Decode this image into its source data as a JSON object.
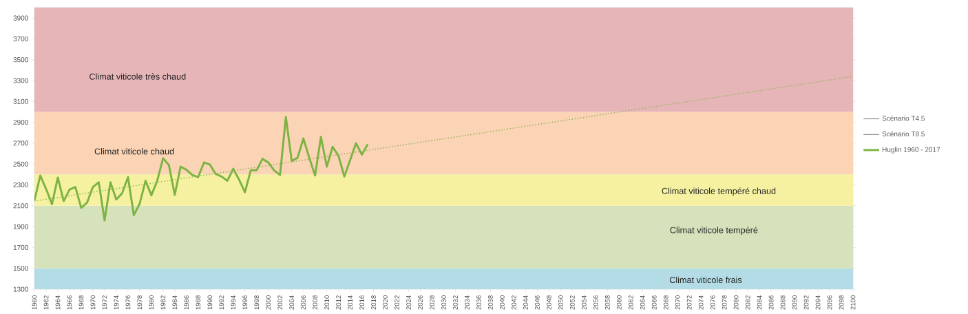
{
  "chart_data": {
    "type": "line",
    "x": [
      1960,
      1961,
      1962,
      1963,
      1964,
      1965,
      1966,
      1967,
      1968,
      1969,
      1970,
      1971,
      1972,
      1973,
      1974,
      1975,
      1976,
      1977,
      1978,
      1979,
      1980,
      1981,
      1982,
      1983,
      1984,
      1985,
      1986,
      1987,
      1988,
      1989,
      1990,
      1991,
      1992,
      1993,
      1994,
      1995,
      1996,
      1997,
      1998,
      1999,
      2000,
      2001,
      2002,
      2003,
      2004,
      2005,
      2006,
      2007,
      2008,
      2009,
      2010,
      2011,
      2012,
      2013,
      2014,
      2015,
      2016,
      2017
    ],
    "series": [
      {
        "name": "Scénario T4.5",
        "values": [
          null,
          null,
          null,
          null,
          null,
          null,
          null,
          null,
          null,
          null,
          null,
          null,
          null,
          null,
          null,
          null,
          null,
          null,
          null,
          null,
          null,
          null,
          null,
          null,
          null,
          null,
          null,
          null,
          null,
          null,
          null,
          null,
          null,
          null,
          null,
          null,
          null,
          null,
          null,
          null,
          null,
          null,
          null,
          null,
          null,
          null,
          null,
          null,
          null,
          null,
          null,
          null,
          null,
          null,
          null,
          null,
          null,
          null
        ]
      },
      {
        "name": "Scénario T8.5",
        "values": [
          null,
          null,
          null,
          null,
          null,
          null,
          null,
          null,
          null,
          null,
          null,
          null,
          null,
          null,
          null,
          null,
          null,
          null,
          null,
          null,
          null,
          null,
          null,
          null,
          null,
          null,
          null,
          null,
          null,
          null,
          null,
          null,
          null,
          null,
          null,
          null,
          null,
          null,
          null,
          null,
          null,
          null,
          null,
          null,
          null,
          null,
          null,
          null,
          null,
          null,
          null,
          null,
          null,
          null,
          null,
          null,
          null,
          null
        ]
      },
      {
        "name": "Huglin 1960 - 2017",
        "color": "#7cb342",
        "line_style": "solid",
        "values": [
          2150,
          2390,
          2260,
          2115,
          2370,
          2145,
          2255,
          2280,
          2080,
          2130,
          2280,
          2325,
          1960,
          2325,
          2160,
          2220,
          2375,
          2010,
          2120,
          2340,
          2200,
          2340,
          2555,
          2490,
          2205,
          2475,
          2445,
          2395,
          2375,
          2515,
          2495,
          2405,
          2380,
          2340,
          2455,
          2350,
          2230,
          2440,
          2440,
          2550,
          2515,
          2440,
          2395,
          2950,
          2530,
          2560,
          2745,
          2560,
          2390,
          2760,
          2475,
          2665,
          2580,
          2380,
          2540,
          2700,
          2590,
          2690
        ]
      },
      {
        "type": "line",
        "color": "#8db654",
        "line_style": "dotted",
        "x": [
          1960,
          2100
        ],
        "values": [
          2145,
          3340
        ]
      }
    ],
    "xlim": [
      1960,
      2100
    ],
    "xticks": [
      1960,
      1962,
      1964,
      1966,
      1968,
      1970,
      1972,
      1974,
      1976,
      1978,
      1980,
      1982,
      1984,
      1986,
      1988,
      1990,
      1992,
      1994,
      1996,
      1998,
      2000,
      2002,
      2004,
      2006,
      2008,
      2010,
      2012,
      2014,
      2016,
      2018,
      2020,
      2022,
      2024,
      2026,
      2028,
      2030,
      2032,
      2034,
      2036,
      2038,
      2040,
      2042,
      2044,
      2046,
      2048,
      2050,
      2052,
      2054,
      2056,
      2058,
      2060,
      2062,
      2064,
      2066,
      2068,
      2070,
      2072,
      2074,
      2076,
      2078,
      2080,
      2082,
      2084,
      2086,
      2088,
      2090,
      2092,
      2094,
      2096,
      2098,
      2100
    ],
    "ylim": [
      1300,
      4000
    ],
    "yticks": [
      1300,
      1500,
      1700,
      1900,
      2100,
      2300,
      2500,
      2700,
      2900,
      3100,
      3300,
      3500,
      3700,
      3900
    ],
    "bands": [
      {
        "axis": "y",
        "from": 1300,
        "to": 1500,
        "label": "Climat viticole frais",
        "color": "#b4dce6"
      },
      {
        "axis": "y",
        "from": 1500,
        "to": 2100,
        "label": "Climat viticole tempéré",
        "color": "#d6e2bb"
      },
      {
        "axis": "y",
        "from": 2100,
        "to": 2400,
        "label": "Climat viticole tempéré chaud",
        "color": "#f5f1a0"
      },
      {
        "axis": "y",
        "from": 2400,
        "to": 3000,
        "label": "Climat viticole chaud",
        "color": "#fbd3b5"
      },
      {
        "axis": "y",
        "from": 3000,
        "to": 4000,
        "label": "Climat viticole très chaud",
        "color": "#e6b5b8"
      }
    ],
    "marker": "none",
    "grid": false,
    "legend": "right"
  }
}
